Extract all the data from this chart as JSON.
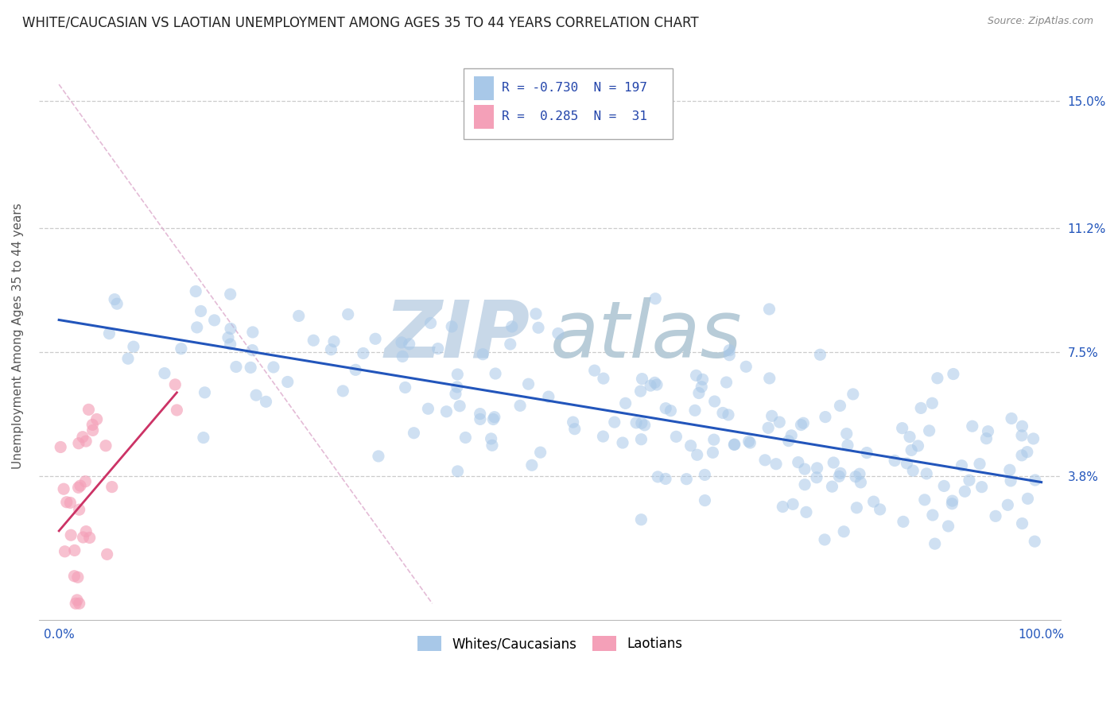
{
  "title": "WHITE/CAUCASIAN VS LAOTIAN UNEMPLOYMENT AMONG AGES 35 TO 44 YEARS CORRELATION CHART",
  "source": "Source: ZipAtlas.com",
  "ylabel": "Unemployment Among Ages 35 to 44 years",
  "xlim": [
    -0.02,
    1.02
  ],
  "ylim": [
    -0.005,
    0.165
  ],
  "ytick_labels": [
    "3.8%",
    "7.5%",
    "11.2%",
    "15.0%"
  ],
  "ytick_values": [
    0.038,
    0.075,
    0.112,
    0.15
  ],
  "xtick_labels": [
    "0.0%",
    "100.0%"
  ],
  "xtick_values": [
    0.0,
    1.0
  ],
  "white_R": -0.73,
  "white_N": 197,
  "laotian_R": 0.285,
  "laotian_N": 31,
  "white_color": "#a8c8e8",
  "laotian_color": "#f4a0b8",
  "white_line_color": "#2255bb",
  "laotian_line_color": "#cc3366",
  "diag_color": "#ddbbcc",
  "watermark_zip": "ZIP",
  "watermark_atlas": "atlas",
  "watermark_color": "#c8d8e8",
  "background_color": "#ffffff",
  "title_fontsize": 12,
  "source_fontsize": 9,
  "tick_fontsize": 11,
  "axis_label_fontsize": 11,
  "dot_size": 120,
  "white_dot_alpha": 0.55,
  "laotian_dot_alpha": 0.65,
  "seed": 99
}
